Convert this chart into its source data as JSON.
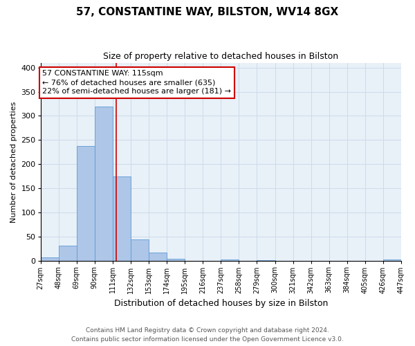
{
  "title": "57, CONSTANTINE WAY, BILSTON, WV14 8GX",
  "subtitle": "Size of property relative to detached houses in Bilston",
  "xlabel": "Distribution of detached houses by size in Bilston",
  "ylabel": "Number of detached properties",
  "bin_edges": [
    27,
    48,
    69,
    90,
    111,
    132,
    153,
    174,
    195,
    216,
    237,
    258,
    279,
    300,
    321,
    342,
    363,
    384,
    405,
    426,
    447
  ],
  "bar_heights": [
    8,
    32,
    238,
    320,
    175,
    45,
    17,
    5,
    0,
    0,
    3,
    0,
    2,
    0,
    0,
    0,
    0,
    0,
    0,
    3
  ],
  "bar_color": "#aec6e8",
  "bar_edge_color": "#5b9bd5",
  "property_size": 115,
  "vline_color": "#cc0000",
  "annotation_line1": "57 CONSTANTINE WAY: 115sqm",
  "annotation_line2": "← 76% of detached houses are smaller (635)",
  "annotation_line3": "22% of semi-detached houses are larger (181) →",
  "annotation_box_color": "#ffffff",
  "annotation_box_edge_color": "#cc0000",
  "ylim": [
    0,
    410
  ],
  "yticks": [
    0,
    50,
    100,
    150,
    200,
    250,
    300,
    350,
    400
  ],
  "tick_labels": [
    "27sqm",
    "48sqm",
    "69sqm",
    "90sqm",
    "111sqm",
    "132sqm",
    "153sqm",
    "174sqm",
    "195sqm",
    "216sqm",
    "237sqm",
    "258sqm",
    "279sqm",
    "300sqm",
    "321sqm",
    "342sqm",
    "363sqm",
    "384sqm",
    "405sqm",
    "426sqm",
    "447sqm"
  ],
  "footer_line1": "Contains HM Land Registry data © Crown copyright and database right 2024.",
  "footer_line2": "Contains public sector information licensed under the Open Government Licence v3.0.",
  "background_color": "#ffffff",
  "plot_bg_color": "#e8f0f8",
  "grid_color": "#c8d8e8",
  "title_fontsize": 11,
  "subtitle_fontsize": 9,
  "xlabel_fontsize": 9,
  "ylabel_fontsize": 8,
  "tick_fontsize": 7,
  "footer_fontsize": 6.5,
  "annotation_fontsize": 8
}
